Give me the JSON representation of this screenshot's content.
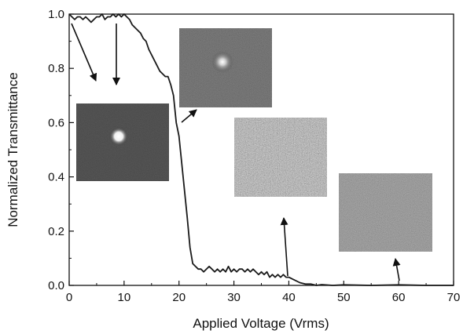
{
  "chart_data": {
    "type": "line",
    "xlabel": "Applied Voltage (Vrms)",
    "ylabel": "Normalized Transmittance",
    "xlim": [
      0,
      70
    ],
    "ylim": [
      0,
      1.0
    ],
    "x_ticks": [
      0,
      10,
      20,
      30,
      40,
      50,
      60,
      70
    ],
    "y_ticks": [
      0.0,
      0.2,
      0.4,
      0.6,
      0.8,
      1.0
    ],
    "x_tick_labels": [
      "0",
      "10",
      "20",
      "30",
      "40",
      "50",
      "60",
      "70"
    ],
    "y_tick_labels": [
      "0.0",
      "0.2",
      "0.4",
      "0.6",
      "0.8",
      "1.0"
    ],
    "series": [
      {
        "x": [
          0,
          0.5,
          1,
          1.5,
          2,
          2.5,
          3,
          3.5,
          4,
          4.5,
          5,
          5.5,
          6,
          6.5,
          7,
          7.5,
          8,
          8.5,
          9,
          9.5,
          10,
          10.5,
          11,
          11.5,
          12,
          12.5,
          13,
          13.5,
          14,
          14.5,
          15,
          15.5,
          16,
          16.5,
          17,
          17.5,
          18,
          18.5,
          19,
          19.5,
          20,
          20.5,
          21,
          21.5,
          22,
          22.5,
          23,
          23.5,
          24,
          24.5,
          25,
          25.5,
          26,
          26.5,
          27,
          27.5,
          28,
          28.5,
          29,
          29.5,
          30,
          30.5,
          31,
          31.5,
          32,
          32.5,
          33,
          33.5,
          34,
          34.5,
          35,
          35.5,
          36,
          36.5,
          37,
          37.5,
          38,
          38.5,
          39,
          39.5,
          40,
          41,
          42,
          43,
          44,
          45,
          46,
          48,
          50,
          55,
          60,
          65,
          70
        ],
        "values": [
          1.0,
          0.99,
          0.98,
          0.99,
          0.99,
          0.98,
          0.99,
          0.98,
          0.97,
          0.98,
          0.99,
          0.99,
          1.0,
          0.98,
          0.99,
          0.99,
          1.0,
          0.99,
          1.0,
          0.99,
          1.0,
          0.99,
          0.98,
          0.96,
          0.95,
          0.94,
          0.93,
          0.91,
          0.9,
          0.87,
          0.85,
          0.83,
          0.81,
          0.79,
          0.78,
          0.77,
          0.77,
          0.74,
          0.7,
          0.6,
          0.55,
          0.45,
          0.35,
          0.25,
          0.14,
          0.08,
          0.07,
          0.06,
          0.06,
          0.05,
          0.06,
          0.07,
          0.06,
          0.05,
          0.06,
          0.05,
          0.06,
          0.05,
          0.07,
          0.05,
          0.06,
          0.05,
          0.06,
          0.06,
          0.05,
          0.06,
          0.05,
          0.06,
          0.05,
          0.04,
          0.05,
          0.04,
          0.05,
          0.03,
          0.04,
          0.03,
          0.04,
          0.03,
          0.04,
          0.03,
          0.03,
          0.02,
          0.01,
          0.005,
          0.005,
          0.0,
          0.003,
          0.0,
          0.002,
          0.0,
          0.002,
          0.0,
          0.0
        ]
      }
    ],
    "grid": false,
    "inset_images": [
      "far-field spot, bright small dot",
      "far-field spot, dimmer dot",
      "scattered speckle pattern",
      "uniform speckle noise"
    ],
    "arrows_to_curve_x": [
      0.5,
      8.5,
      19.5,
      39.5,
      60
    ]
  }
}
